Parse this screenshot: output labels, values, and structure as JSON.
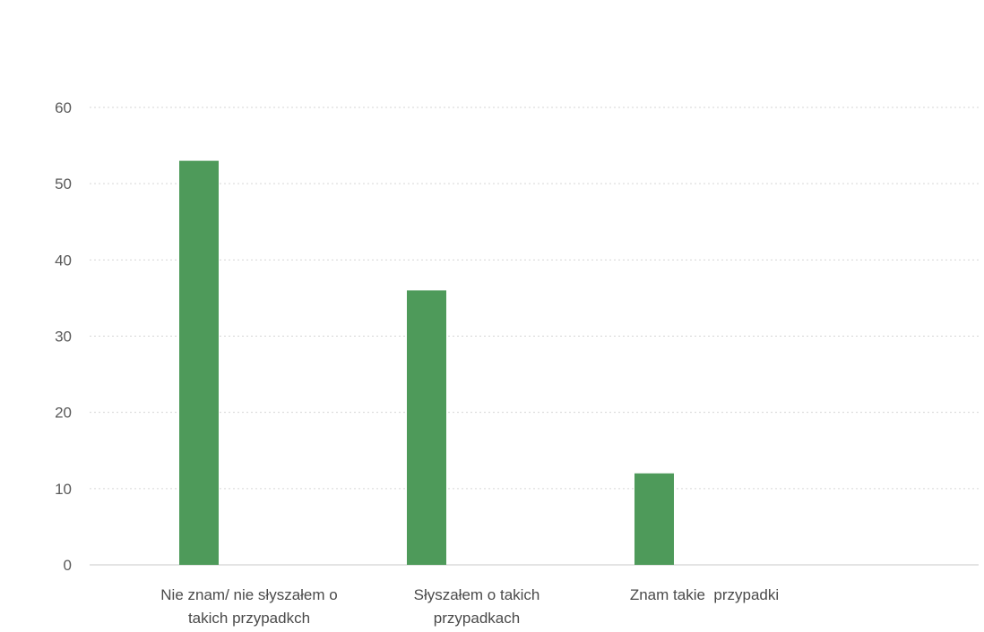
{
  "chart_data": {
    "type": "bar",
    "categories": [
      [
        "Nie znam/ nie słyszałem o",
        "takich przypadkch"
      ],
      [
        "Słyszałem o takich",
        "przypadkach"
      ],
      [
        "Znam takie  przypadki"
      ]
    ],
    "values": [
      53,
      36,
      12
    ],
    "ylim": [
      0,
      60
    ],
    "yticks": [
      0,
      10,
      20,
      30,
      40,
      50,
      60
    ],
    "grid": true,
    "bar_color": "#4e9a5a",
    "title": "",
    "xlabel": "",
    "ylabel": ""
  }
}
